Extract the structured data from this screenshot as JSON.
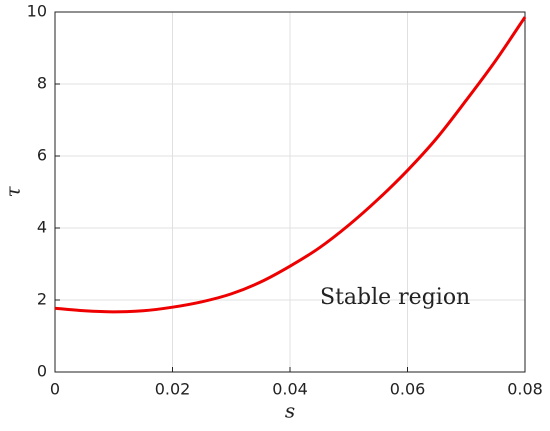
{
  "chart_data": {
    "type": "line",
    "xlabel": "s",
    "ylabel": "τ",
    "annotation": "Stable region",
    "x": [
      0,
      0.005,
      0.01,
      0.015,
      0.02,
      0.025,
      0.03,
      0.035,
      0.04,
      0.045,
      0.05,
      0.055,
      0.06,
      0.065,
      0.07,
      0.075,
      0.08
    ],
    "series": [
      {
        "color": "#ee0000",
        "values": [
          1.77,
          1.7,
          1.67,
          1.7,
          1.8,
          1.95,
          2.17,
          2.5,
          2.94,
          3.45,
          4.08,
          4.8,
          5.6,
          6.5,
          7.55,
          8.65,
          9.86
        ]
      }
    ],
    "xlim": [
      0,
      0.08
    ],
    "xticks": [
      0,
      0.02,
      0.04,
      0.06,
      0.08
    ],
    "ylim": [
      0,
      10
    ],
    "yticks": [
      0,
      2,
      4,
      6,
      8,
      10
    ],
    "grid": true
  }
}
